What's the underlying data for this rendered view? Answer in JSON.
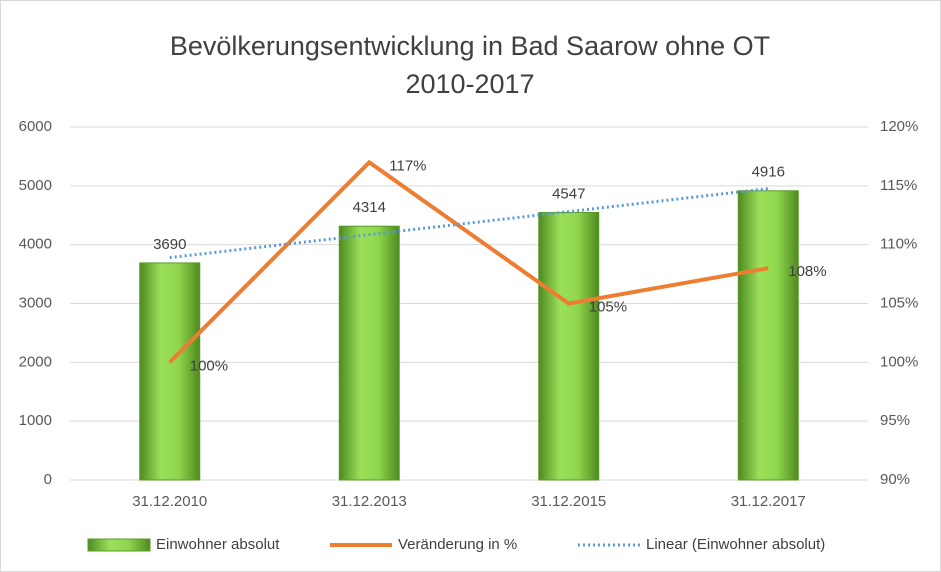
{
  "chart_data": {
    "type": "bar",
    "title": "Bevölkerungsentwicklung in Bad Saarow ohne OT",
    "subtitle": "2010-2017",
    "categories": [
      "31.12.2010",
      "31.12.2013",
      "31.12.2015",
      "31.12.2017"
    ],
    "series": [
      {
        "name": "Einwohner absolut",
        "type": "bar",
        "color": "#7cc242",
        "values": [
          3690,
          4314,
          4547,
          4916
        ]
      },
      {
        "name": "Veränderung in %",
        "type": "line",
        "color": "#ed7d31",
        "axis": "y2",
        "values": [
          100,
          117,
          105,
          108
        ],
        "value_labels": [
          "100%",
          "117%",
          "105%",
          "108%"
        ]
      },
      {
        "name": "Linear (Einwohner absolut)",
        "type": "line",
        "line_style": "dotted",
        "color": "#5b9bd5",
        "values": [
          3780,
          4171,
          4562,
          4953
        ]
      }
    ],
    "ylim": [
      0,
      6000
    ],
    "yticks": [
      0,
      1000,
      2000,
      3000,
      4000,
      5000,
      6000
    ],
    "y2lim": [
      90,
      120
    ],
    "y2ticks": [
      {
        "value": 90,
        "label": "90%"
      },
      {
        "value": 95,
        "label": "95%"
      },
      {
        "value": 100,
        "label": "100%"
      },
      {
        "value": 105,
        "label": "105%"
      },
      {
        "value": 110,
        "label": "110%"
      },
      {
        "value": 115,
        "label": "115%"
      },
      {
        "value": 120,
        "label": "120%"
      }
    ],
    "grid": true,
    "legend": "bottom"
  }
}
